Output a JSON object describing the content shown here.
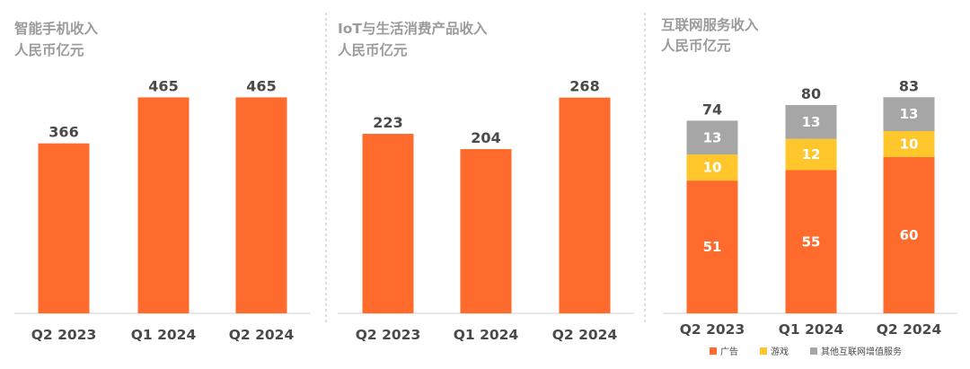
{
  "chart_data": [
    {
      "type": "bar",
      "title": "智能手机收入",
      "subtitle": "人民币亿元",
      "categories": [
        "Q2 2023",
        "Q1 2024",
        "Q2 2024"
      ],
      "values": [
        366,
        465,
        465
      ],
      "ylim": [
        0,
        520
      ],
      "grid": false,
      "color": "#ff6b2c"
    },
    {
      "type": "bar",
      "title": "IoT与生活消费产品收入",
      "subtitle": "人民币亿元",
      "categories": [
        "Q2 2023",
        "Q1 2024",
        "Q2 2024"
      ],
      "values": [
        223,
        204,
        268
      ],
      "ylim": [
        0,
        300
      ],
      "grid": false,
      "color": "#ff6b2c"
    },
    {
      "type": "bar",
      "stacked": true,
      "title": "互联网服务收入",
      "subtitle": "人民币亿元",
      "categories": [
        "Q2 2023",
        "Q1 2024",
        "Q2 2024"
      ],
      "totals": [
        74,
        80,
        83
      ],
      "series": [
        {
          "name": "广告",
          "values": [
            51,
            55,
            60
          ],
          "color": "#ff6b2c"
        },
        {
          "name": "游戏",
          "values": [
            10,
            12,
            10
          ],
          "color": "#ffc72c"
        },
        {
          "name": "其他互联网增值服务",
          "values": [
            13,
            13,
            13
          ],
          "color": "#a6a6a6"
        }
      ],
      "ylim": [
        0,
        90
      ],
      "grid": false,
      "legend_position": "bottom"
    }
  ]
}
